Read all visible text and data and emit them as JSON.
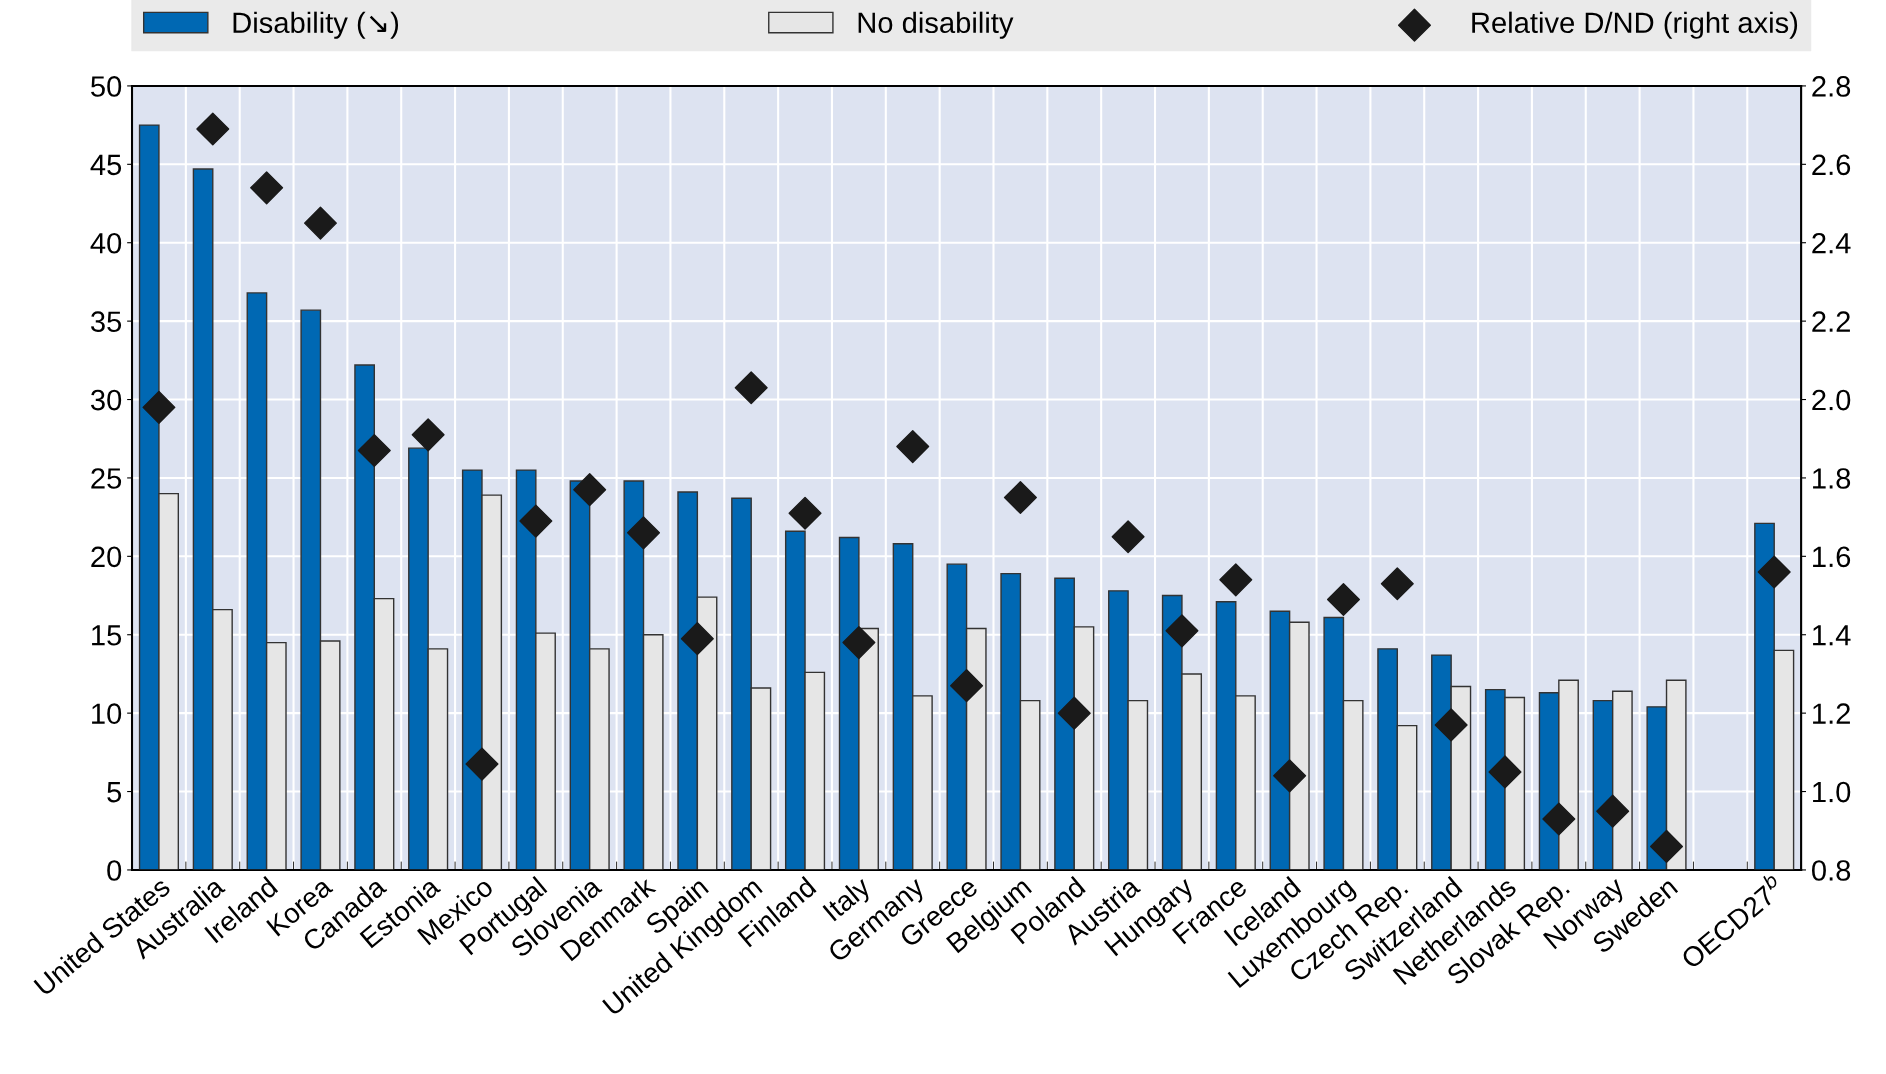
{
  "chart_data": {
    "type": "bar",
    "categories": [
      "United States",
      "Australia",
      "Ireland",
      "Korea",
      "Canada",
      "Estonia",
      "Mexico",
      "Portugal",
      "Slovenia",
      "Denmark",
      "Spain",
      "United Kingdom",
      "Finland",
      "Italy",
      "Germany",
      "Greece",
      "Belgium",
      "Poland",
      "Austria",
      "Hungary",
      "France",
      "Iceland",
      "Luxembourg",
      "Czech Rep.",
      "Switzerland",
      "Netherlands",
      "Slovak Rep.",
      "Norway",
      "Sweden",
      null,
      "OECD27$^{b}$"
    ],
    "series": [
      {
        "name": "Disability (↘)",
        "color": "#0068b3",
        "values": [
          47.5,
          44.7,
          36.8,
          35.7,
          32.2,
          26.9,
          25.5,
          25.5,
          24.8,
          24.8,
          24.1,
          23.7,
          21.6,
          21.2,
          20.8,
          19.5,
          18.9,
          18.6,
          17.8,
          17.5,
          17.1,
          16.5,
          16.1,
          14.1,
          13.7,
          11.5,
          11.3,
          10.8,
          10.4,
          null,
          22.1
        ]
      },
      {
        "name": "No disability",
        "color": "#e6e6e6",
        "values": [
          24.0,
          16.6,
          14.5,
          14.6,
          17.3,
          14.1,
          23.9,
          15.1,
          14.1,
          15.0,
          17.4,
          11.6,
          12.6,
          15.4,
          11.1,
          15.4,
          10.8,
          15.5,
          10.8,
          12.5,
          11.1,
          15.8,
          10.8,
          9.2,
          11.7,
          11.0,
          12.1,
          11.4,
          12.1,
          null,
          14.0
        ]
      },
      {
        "name": "Relative D/ND (right axis)",
        "type": "scatter",
        "axis": "y2",
        "color": "#1a1a1a",
        "values": [
          1.98,
          2.69,
          2.54,
          2.45,
          1.87,
          1.91,
          1.07,
          1.69,
          1.77,
          1.66,
          1.39,
          2.03,
          1.71,
          1.38,
          1.88,
          1.27,
          1.75,
          1.2,
          1.65,
          1.41,
          1.54,
          1.04,
          1.49,
          1.53,
          1.17,
          1.05,
          0.93,
          0.95,
          0.86,
          null,
          1.56
        ]
      }
    ],
    "ylim": [
      0,
      50
    ],
    "yticks": [
      0,
      5,
      10,
      15,
      20,
      25,
      30,
      35,
      40,
      45,
      50
    ],
    "y2lim": [
      0.8,
      2.8
    ],
    "y2ticks": [
      {
        "value": 0.8,
        "label": "0.8"
      },
      {
        "value": 1.0,
        "label": "1.0"
      },
      {
        "value": 1.2,
        "label": "1.2"
      },
      {
        "value": 1.4,
        "label": "1.4"
      },
      {
        "value": 1.6,
        "label": "1.6"
      },
      {
        "value": 1.8,
        "label": "1.8"
      },
      {
        "value": 2.0,
        "label": "2.0"
      },
      {
        "value": 2.2,
        "label": "2.2"
      },
      {
        "value": 2.4,
        "label": "2.4"
      },
      {
        "value": 2.6,
        "label": "2.6"
      },
      {
        "value": 2.8,
        "label": "2.8"
      }
    ],
    "grid": true,
    "legend": "top",
    "marker": "diamond"
  }
}
